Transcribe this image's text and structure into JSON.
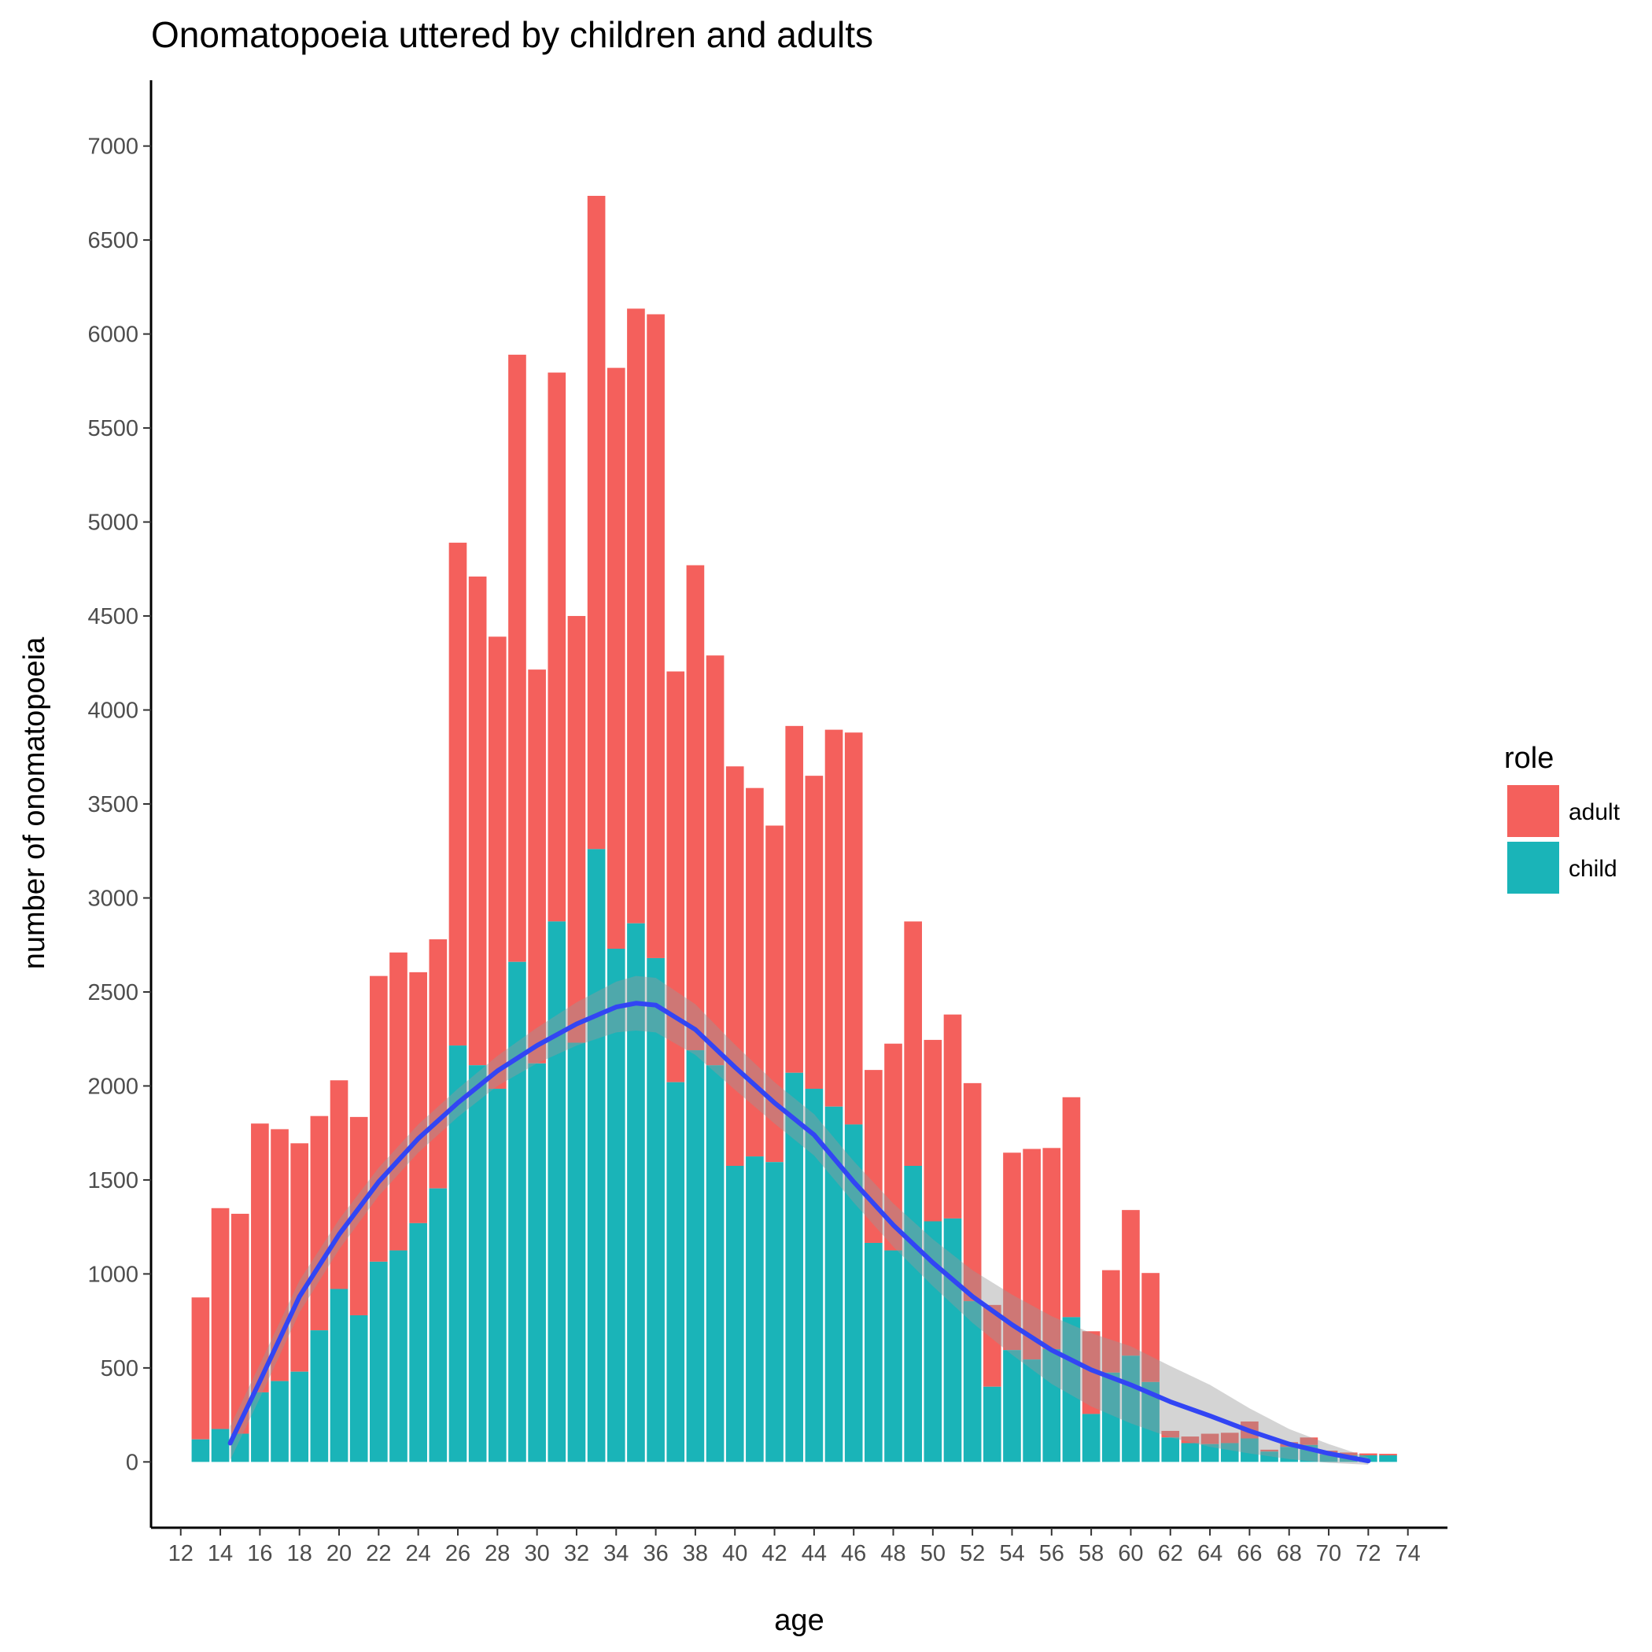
{
  "chart_data": {
    "type": "bar",
    "stacked": true,
    "title": "Onomatopoeia uttered by children and adults",
    "xlabel": "age",
    "ylabel": "number of onomatopoeia",
    "xlim": [
      10.5,
      76
    ],
    "ylim": [
      -350,
      7350
    ],
    "x_ticks": [
      12,
      14,
      16,
      18,
      20,
      22,
      24,
      26,
      28,
      30,
      32,
      34,
      36,
      38,
      40,
      42,
      44,
      46,
      48,
      50,
      52,
      54,
      56,
      58,
      60,
      62,
      64,
      66,
      68,
      70,
      72,
      74
    ],
    "y_ticks": [
      0,
      500,
      1000,
      1500,
      2000,
      2500,
      3000,
      3500,
      4000,
      4500,
      5000,
      5500,
      6000,
      6500,
      7000
    ],
    "x": [
      13,
      14,
      15,
      16,
      17,
      18,
      19,
      20,
      21,
      22,
      23,
      24,
      25,
      26,
      27,
      28,
      29,
      30,
      31,
      32,
      33,
      34,
      35,
      36,
      37,
      38,
      39,
      40,
      41,
      42,
      43,
      44,
      45,
      46,
      47,
      48,
      49,
      50,
      51,
      52,
      53,
      54,
      55,
      56,
      57,
      58,
      59,
      60,
      61,
      62,
      63,
      64,
      65,
      66,
      67,
      68,
      69,
      70,
      71,
      72,
      73
    ],
    "series": [
      {
        "name": "child",
        "color": "#1ab4b8",
        "values": [
          120,
          175,
          150,
          370,
          430,
          480,
          700,
          920,
          780,
          1065,
          1125,
          1270,
          1455,
          2215,
          2110,
          1985,
          2660,
          2120,
          2875,
          2230,
          3260,
          2730,
          2865,
          2680,
          2020,
          2190,
          2110,
          1575,
          1625,
          1595,
          2070,
          1985,
          1890,
          1795,
          1165,
          1125,
          1575,
          1280,
          1295,
          855,
          400,
          595,
          545,
          600,
          770,
          255,
          475,
          565,
          425,
          130,
          100,
          95,
          100,
          125,
          55,
          80,
          90,
          40,
          35,
          35,
          35
        ]
      },
      {
        "name": "adult",
        "color": "#f4605c",
        "values": [
          755,
          1175,
          1170,
          1430,
          1340,
          1215,
          1140,
          1110,
          1055,
          1520,
          1585,
          1335,
          1325,
          2675,
          2600,
          2405,
          3230,
          2095,
          2920,
          2270,
          3475,
          3090,
          3270,
          3425,
          2185,
          2580,
          2180,
          2125,
          1960,
          1790,
          1845,
          1665,
          2005,
          2085,
          920,
          1100,
          1300,
          965,
          1085,
          1160,
          435,
          1050,
          1120,
          1070,
          1170,
          440,
          545,
          775,
          580,
          35,
          35,
          55,
          55,
          90,
          10,
          25,
          40,
          20,
          15,
          10,
          8
        ]
      }
    ],
    "smooth": {
      "name": "loess",
      "color": "#3245f4",
      "x": [
        14.5,
        16,
        18,
        20,
        22,
        24,
        26,
        28,
        30,
        32,
        34,
        35,
        36,
        38,
        40,
        42,
        44,
        46,
        48,
        50,
        52,
        54,
        56,
        58,
        60,
        62,
        64,
        66,
        68,
        70,
        72
      ],
      "y": [
        100,
        430,
        880,
        1210,
        1490,
        1720,
        1910,
        2080,
        2215,
        2330,
        2420,
        2440,
        2430,
        2300,
        2100,
        1910,
        1740,
        1490,
        1260,
        1060,
        880,
        730,
        595,
        490,
        410,
        320,
        245,
        165,
        95,
        45,
        5
      ],
      "band": [
        90,
        90,
        85,
        80,
        75,
        75,
        75,
        80,
        95,
        115,
        135,
        145,
        145,
        135,
        120,
        110,
        110,
        110,
        115,
        125,
        140,
        160,
        180,
        195,
        205,
        190,
        165,
        120,
        80,
        50,
        20
      ]
    },
    "legend": {
      "title": "role",
      "entries": [
        {
          "label": "adult",
          "color": "#f4605c"
        },
        {
          "label": "child",
          "color": "#1ab4b8"
        }
      ],
      "placement": "right"
    },
    "grid": false
  }
}
